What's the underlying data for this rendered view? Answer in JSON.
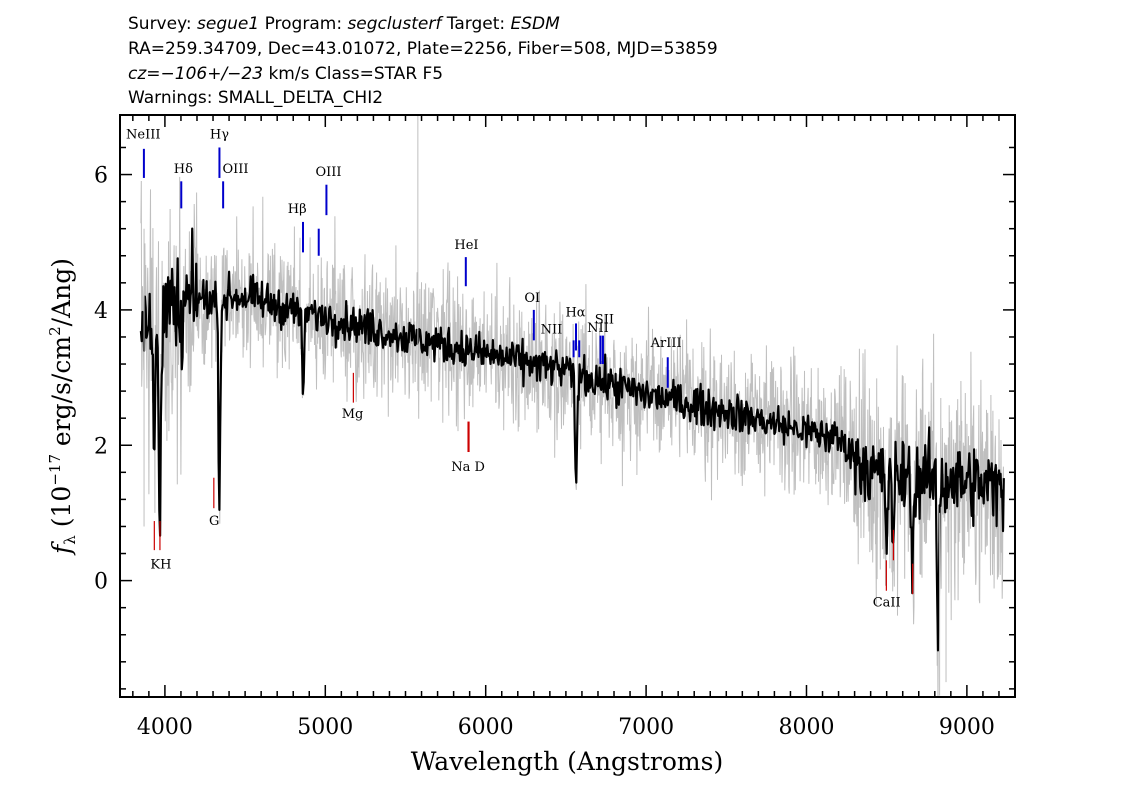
{
  "header": {
    "line1": {
      "p1": "Survey: ",
      "survey": "segue1",
      "p2": " Program: ",
      "program": "segclusterf",
      "p3": " Target: ",
      "target": "ESDM"
    },
    "line2": "RA=259.34709, Dec=43.01072, Plate=2256, Fiber=508, MJD=53859",
    "line3": {
      "cz": "cz=−106+/−23",
      "rest": " km/s Class=STAR F5"
    },
    "line4": "Warnings: SMALL_DELTA_CHI2"
  },
  "chart_data": {
    "type": "line",
    "xlabel": "Wavelength (Angstroms)",
    "ylabel_parts": {
      "f": "f",
      "lambda": "λ",
      "a": " (10",
      "exp": "−17",
      "b": " erg/s/cm",
      "exp2": "2",
      "c": "/Ang)"
    },
    "xlim": [
      3720,
      9300
    ],
    "ylim": [
      -1.72,
      6.88
    ],
    "xticks": [
      4000,
      5000,
      6000,
      7000,
      8000,
      9000
    ],
    "xtick_labels": [
      "4000",
      "5000",
      "6000",
      "7000",
      "8000",
      "9000"
    ],
    "yticks": [
      0,
      2,
      4,
      6
    ],
    "ytick_labels": [
      "0",
      "2",
      "4",
      "6"
    ],
    "grid": false,
    "colors": {
      "flux": "#000000",
      "error": "#bfbfbf",
      "emission": "#0000cc",
      "absorption": "#cc0000"
    },
    "continuum_knots": [
      [
        3850,
        3.6
      ],
      [
        4000,
        3.9
      ],
      [
        4200,
        4.15
      ],
      [
        4500,
        4.2
      ],
      [
        4800,
        4.0
      ],
      [
        5000,
        3.9
      ],
      [
        5500,
        3.6
      ],
      [
        6000,
        3.35
      ],
      [
        6500,
        3.1
      ],
      [
        7000,
        2.75
      ],
      [
        7500,
        2.5
      ],
      [
        8000,
        2.2
      ],
      [
        8200,
        2.1
      ],
      [
        8400,
        1.6
      ],
      [
        8600,
        1.55
      ],
      [
        9000,
        1.45
      ],
      [
        9230,
        1.35
      ]
    ],
    "absorption_features": [
      {
        "x": 3934,
        "depth": 1.8
      },
      {
        "x": 3969,
        "depth": 2.6
      },
      {
        "x": 4102,
        "depth": 0.7
      },
      {
        "x": 4340,
        "depth": 2.8
      },
      {
        "x": 4861,
        "depth": 1.2
      },
      {
        "x": 6563,
        "depth": 1.7
      },
      {
        "x": 8498,
        "depth": 1.0
      },
      {
        "x": 8542,
        "depth": 1.1
      },
      {
        "x": 8662,
        "depth": 1.3
      },
      {
        "x": 8820,
        "depth": 2.3
      }
    ],
    "emission_lines": [
      {
        "label": "NeIII",
        "x": 3869,
        "y0": 5.95,
        "y1": 6.38
      },
      {
        "label": "Hδ",
        "x": 4102,
        "y0": 5.5,
        "y1": 5.9
      },
      {
        "label": "Hγ",
        "x": 4340,
        "y0": 5.95,
        "y1": 6.4
      },
      {
        "label": "OIII",
        "x": 4363,
        "y0": 5.5,
        "y1": 5.9
      },
      {
        "label": "Hβ",
        "x": 4861,
        "y0": 4.85,
        "y1": 5.3
      },
      {
        "label": "",
        "x": 4959,
        "y0": 4.8,
        "y1": 5.2
      },
      {
        "label": "OIII",
        "x": 5007,
        "y0": 5.4,
        "y1": 5.85
      },
      {
        "label": "HeI",
        "x": 5876,
        "y0": 4.35,
        "y1": 4.78
      },
      {
        "label": "OI",
        "x": 6300,
        "y0": 3.55,
        "y1": 4.0
      },
      {
        "label": "NII",
        "x": 6548,
        "y0": 3.3,
        "y1": 3.55
      },
      {
        "label": "Hα",
        "x": 6563,
        "y0": 3.4,
        "y1": 3.8
      },
      {
        "label": "NII",
        "x": 6583,
        "y0": 3.3,
        "y1": 3.55
      },
      {
        "label": "SII",
        "x": 6716,
        "y0": 3.2,
        "y1": 3.62
      },
      {
        "label": "",
        "x": 6731,
        "y0": 3.2,
        "y1": 3.62
      },
      {
        "label": "ArIII",
        "x": 7135,
        "y0": 2.85,
        "y1": 3.3
      }
    ],
    "absorption_lines": [
      {
        "label": "K",
        "x": 3934,
        "y0": 0.45,
        "y1": 0.88
      },
      {
        "label": "H",
        "x": 3969,
        "y0": 0.45,
        "y1": 0.88
      },
      {
        "label": "G",
        "x": 4305,
        "y0": 1.07,
        "y1": 1.52
      },
      {
        "label": "Mg",
        "x": 5175,
        "y0": 2.63,
        "y1": 3.07
      },
      {
        "label": "Na",
        "x": 5890,
        "y0": 1.9,
        "y1": 2.35
      },
      {
        "label": "D",
        "x": 5896,
        "y0": 1.9,
        "y1": 2.35
      },
      {
        "label": "CaII",
        "x": 8498,
        "y0": -0.15,
        "y1": 0.3
      },
      {
        "label": "",
        "x": 8542,
        "y0": 0.3,
        "y1": 0.75
      },
      {
        "label": "",
        "x": 8662,
        "y0": -0.2,
        "y1": 0.25
      }
    ],
    "line_labels": [
      {
        "text": "NeIII",
        "x": 3865,
        "y": 6.53
      },
      {
        "text": "Hδ",
        "x": 4115,
        "y": 6.02
      },
      {
        "text": "Hγ",
        "x": 4340,
        "y": 6.53
      },
      {
        "text": "OIII",
        "x": 4440,
        "y": 6.02
      },
      {
        "text": "Hβ",
        "x": 4825,
        "y": 5.43
      },
      {
        "text": "OIII",
        "x": 5020,
        "y": 5.98
      },
      {
        "text": "HeI",
        "x": 5880,
        "y": 4.9
      },
      {
        "text": "OI",
        "x": 6290,
        "y": 4.12
      },
      {
        "text": "NII",
        "x": 6410,
        "y": 3.65
      },
      {
        "text": "Hα",
        "x": 6560,
        "y": 3.9
      },
      {
        "text": "NII",
        "x": 6700,
        "y": 3.67
      },
      {
        "text": "SII",
        "x": 6740,
        "y": 3.8
      },
      {
        "text": "ArIII",
        "x": 7125,
        "y": 3.45
      },
      {
        "text": "KH",
        "x": 3975,
        "y": 0.18
      },
      {
        "text": "G",
        "x": 4307,
        "y": 0.82
      },
      {
        "text": "Mg",
        "x": 5170,
        "y": 2.4
      },
      {
        "text": "Na  D",
        "x": 5890,
        "y": 1.62
      },
      {
        "text": "CaII",
        "x": 8500,
        "y": -0.38
      }
    ]
  }
}
